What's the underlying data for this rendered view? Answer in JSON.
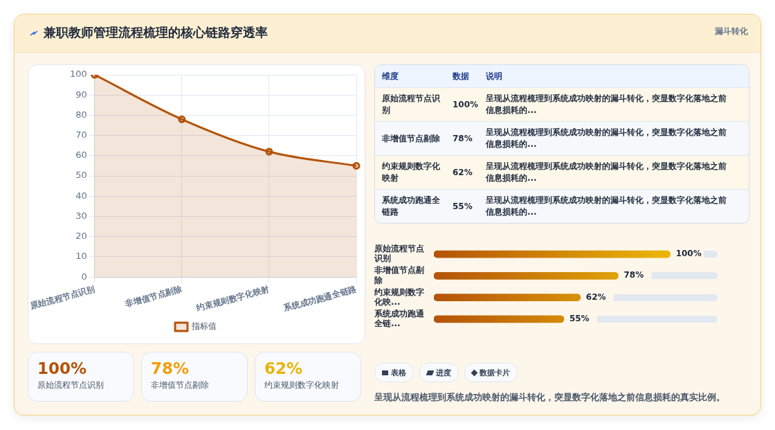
{
  "chart_data": [
    {
      "type": "other",
      "title": "兼职教师管理流程梳理的核心链路穿透率",
      "subtitle": "漏斗转化"
    },
    {
      "type": "area",
      "categories": [
        "原始流程节点识别",
        "非增值节点剔除",
        "约束规则数字化映射",
        "系统成功跑通全链路"
      ],
      "series": [
        {
          "name": "指标值",
          "color": "#b45309",
          "values": [
            100,
            78,
            62,
            55
          ]
        }
      ],
      "ylim": [
        0,
        100
      ],
      "yticks": [
        0,
        10,
        20,
        30,
        40,
        50,
        60,
        70,
        80,
        90,
        100
      ],
      "grid": true,
      "legend": "bottom",
      "marker": "circle"
    },
    {
      "type": "other",
      "annotations": [
        "维度",
        "数据",
        "说明",
        "原始流程节点识别",
        "100%",
        "呈现从流程梳理到系统成功映射的漏斗转化，突显数字化落地之前信息损耗的...",
        "非增值节点剔除",
        "78%",
        "呈现从流程梳理到系统成功映射的漏斗转化，突显数字化落地之前信息损耗的...",
        "约束规则数字化映射",
        "62%",
        "呈现从流程梳理到系统成功映射的漏斗转化，突显数字化落地之前信息损耗的...",
        "系统成功跑通全链路",
        "55%",
        "呈现从流程梳理到系统成功映射的漏斗转化，突显数字化落地之前信息损耗的..."
      ]
    },
    {
      "type": "bar",
      "orientation": "horizontal",
      "categories": [
        "原始流程节点识别",
        "非增值节点剔除",
        "约束规则数字化映...",
        "系统成功跑通全链..."
      ],
      "series": [
        {
          "color": "#b45309",
          "values": [
            100,
            78,
            62,
            55
          ],
          "value_labels": [
            "100%",
            "78%",
            "62%",
            "55%"
          ]
        }
      ]
    },
    {
      "type": "other",
      "annotations": [
        "100%",
        "原始流程节点识别",
        "78%",
        "非增值节点剔除",
        "62%",
        "约束规则数字化映射"
      ]
    },
    {
      "type": "other",
      "annotations": [
        "表格",
        "进度",
        "数据卡片",
        "呈现从流程梳理到系统成功映射的漏斗转化，突显数字化落地之前信息损耗的真实比例。"
      ]
    }
  ]
}
